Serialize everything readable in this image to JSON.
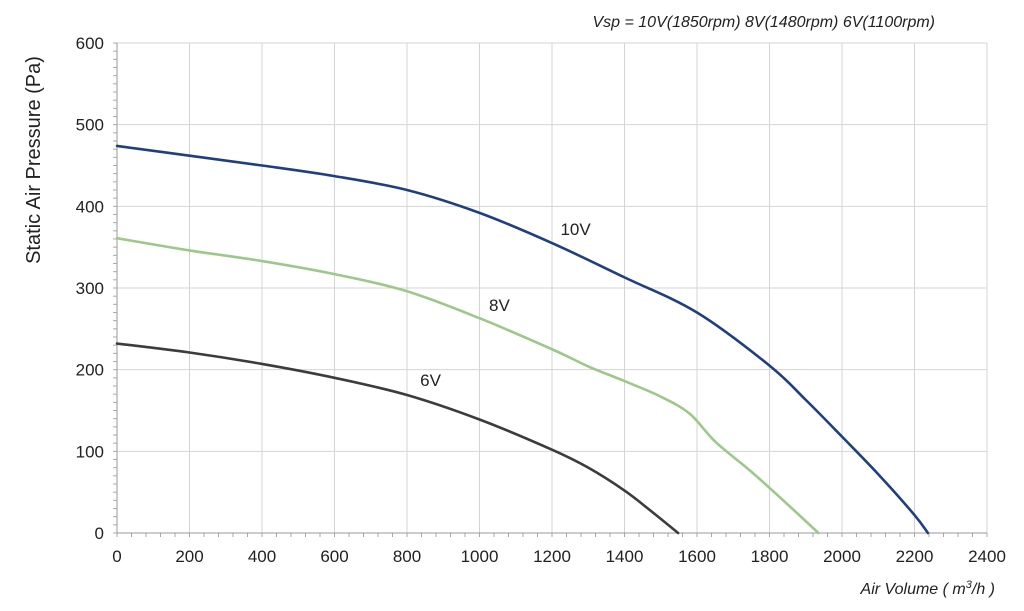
{
  "chart_data": {
    "type": "line",
    "title": "",
    "note": "Vsp = 10V(1850rpm)  8V(1480rpm)   6V(1100rpm)",
    "xlabel_main": "Air Volume ( m",
    "xlabel_sup": "3",
    "xlabel_tail": "/h )",
    "ylabel": "Static Air Pressure  (Pa)",
    "xlim": [
      0,
      2400
    ],
    "ylim": [
      0,
      600
    ],
    "xticks": [
      0,
      200,
      400,
      600,
      800,
      1000,
      1200,
      1400,
      1600,
      1800,
      2000,
      2200,
      2400
    ],
    "yticks": [
      0,
      100,
      200,
      300,
      400,
      500,
      600
    ],
    "grid": true,
    "series": [
      {
        "name": "10V",
        "color": "#1f3f80",
        "label_at": [
          1265,
          365
        ],
        "points": [
          [
            0,
            474
          ],
          [
            200,
            462
          ],
          [
            400,
            450
          ],
          [
            600,
            437
          ],
          [
            800,
            420
          ],
          [
            1000,
            392
          ],
          [
            1200,
            355
          ],
          [
            1400,
            313
          ],
          [
            1600,
            270
          ],
          [
            1800,
            205
          ],
          [
            1900,
            163
          ],
          [
            2000,
            118
          ],
          [
            2100,
            72
          ],
          [
            2200,
            22
          ],
          [
            2237,
            0
          ]
        ]
      },
      {
        "name": "8V",
        "color": "#9dc88a",
        "label_at": [
          1055,
          272
        ],
        "points": [
          [
            0,
            361
          ],
          [
            200,
            346
          ],
          [
            400,
            333
          ],
          [
            600,
            317
          ],
          [
            800,
            296
          ],
          [
            1000,
            263
          ],
          [
            1200,
            225
          ],
          [
            1300,
            204
          ],
          [
            1400,
            186
          ],
          [
            1500,
            167
          ],
          [
            1580,
            146
          ],
          [
            1650,
            112
          ],
          [
            1750,
            75
          ],
          [
            1850,
            35
          ],
          [
            1935,
            0
          ]
        ]
      },
      {
        "name": "6V",
        "color": "#3c3c3c",
        "label_at": [
          865,
          180
        ],
        "points": [
          [
            0,
            232
          ],
          [
            200,
            221
          ],
          [
            400,
            207
          ],
          [
            600,
            190
          ],
          [
            800,
            169
          ],
          [
            1000,
            139
          ],
          [
            1200,
            102
          ],
          [
            1300,
            80
          ],
          [
            1400,
            52
          ],
          [
            1470,
            28
          ],
          [
            1548,
            0
          ]
        ]
      }
    ]
  }
}
